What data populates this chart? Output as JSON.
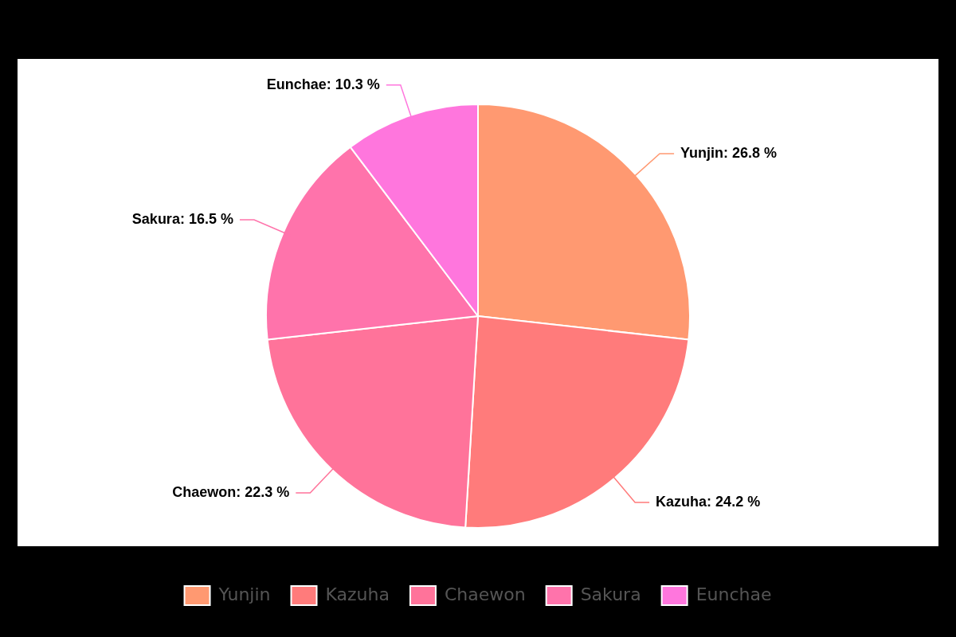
{
  "chart_data": {
    "type": "pie",
    "categories": [
      "Yunjin",
      "Kazuha",
      "Chaewon",
      "Sakura",
      "Eunchae"
    ],
    "values": [
      26.8,
      24.2,
      22.3,
      16.5,
      10.3
    ],
    "colors": [
      "#ff9971",
      "#ff7b7b",
      "#ff739a",
      "#ff73ab",
      "#ff76dd"
    ],
    "value_labels": [
      "Yunjin: 26.8 %",
      "Kazuha: 24.2 %",
      "Chaewon: 22.3 %",
      "Sakura: 16.5 %",
      "Eunchae: 10.3 %"
    ],
    "legend": "bottom"
  }
}
